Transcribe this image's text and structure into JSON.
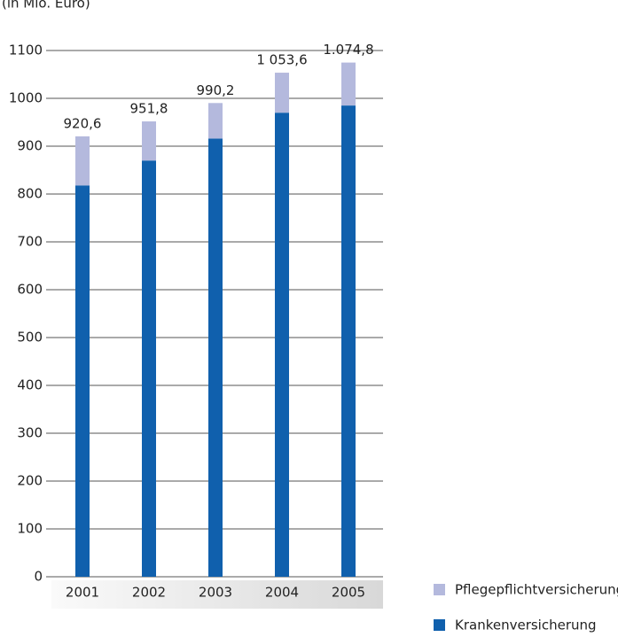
{
  "chart_data": {
    "type": "stacked-bar",
    "title": "(in Mio. Euro)",
    "categories": [
      "2001",
      "2002",
      "2003",
      "2004",
      "2005"
    ],
    "series": [
      {
        "name": "Krankenversicherung",
        "color": "#1060ad",
        "values": [
          818,
          870,
          916,
          970,
          985
        ]
      },
      {
        "name": "Pflegepflichtversicherung",
        "color": "#b4b9dd",
        "values": [
          102.6,
          81.8,
          74.2,
          83.6,
          89.8
        ]
      }
    ],
    "totals": [
      {
        "value": 920.6,
        "label": "920,6"
      },
      {
        "value": 951.8,
        "label": "951,8"
      },
      {
        "value": 990.2,
        "label": "990,2"
      },
      {
        "value": 1053.6,
        "label": "1 053,6"
      },
      {
        "value": 1074.8,
        "label": "1.074,8"
      }
    ],
    "ylim": [
      0,
      1100
    ],
    "yticks": [
      0,
      100,
      200,
      300,
      400,
      500,
      600,
      700,
      800,
      900,
      1000,
      1100
    ],
    "grid": true
  }
}
